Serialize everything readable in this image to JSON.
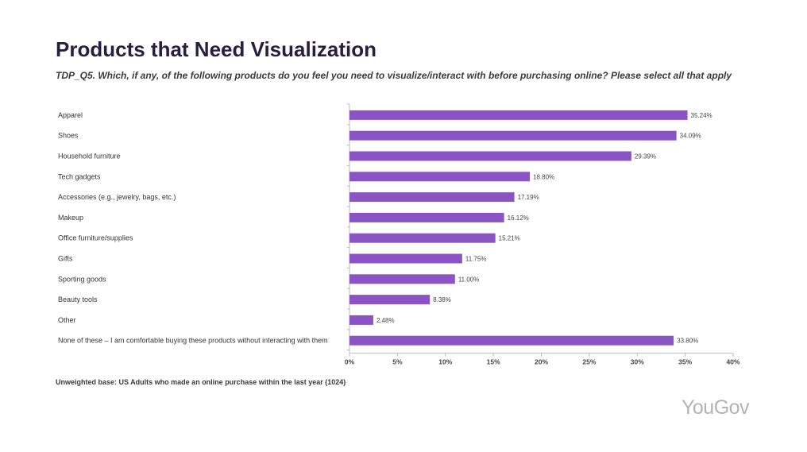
{
  "title": "Products that Need Visualization",
  "subtitle": "TDP_Q5. Which, if any, of the following products do you feel you need to visualize/interact with before purchasing online? Please select all that apply",
  "footnote": "Unweighted base: US Adults who made an online purchase within the last year (1024)",
  "logo": "YouGov",
  "colors": {
    "bar": "#8b54c4",
    "axis": "#bbbbbb"
  },
  "chart_data": {
    "type": "bar",
    "orientation": "horizontal",
    "categories": [
      "Apparel",
      "Shoes",
      "Household furniture",
      "Tech gadgets",
      "Accessories (e.g., jewelry, bags, etc.)",
      "Makeup",
      "Office furniture/supplies",
      "Gifts",
      "Sporting goods",
      "Beauty tools",
      "Other",
      "None of these – I am comfortable buying these products without interacting with them"
    ],
    "values": [
      35.24,
      34.09,
      29.39,
      18.8,
      17.19,
      16.12,
      15.21,
      11.75,
      11.0,
      8.38,
      2.48,
      33.8
    ],
    "value_labels": [
      "35.24%",
      "34.09%",
      "29.39%",
      "18.80%",
      "17.19%",
      "16.12%",
      "15.21%",
      "11.75%",
      "11.00%",
      "8.38%",
      "2.48%",
      "33.80%"
    ],
    "xlim": [
      0,
      40
    ],
    "xticks": [
      0,
      5,
      10,
      15,
      20,
      25,
      30,
      35,
      40
    ],
    "xtick_labels": [
      "0%",
      "5%",
      "10%",
      "15%",
      "20%",
      "25%",
      "30%",
      "35%",
      "40%"
    ],
    "grid": false,
    "legend": "none"
  }
}
